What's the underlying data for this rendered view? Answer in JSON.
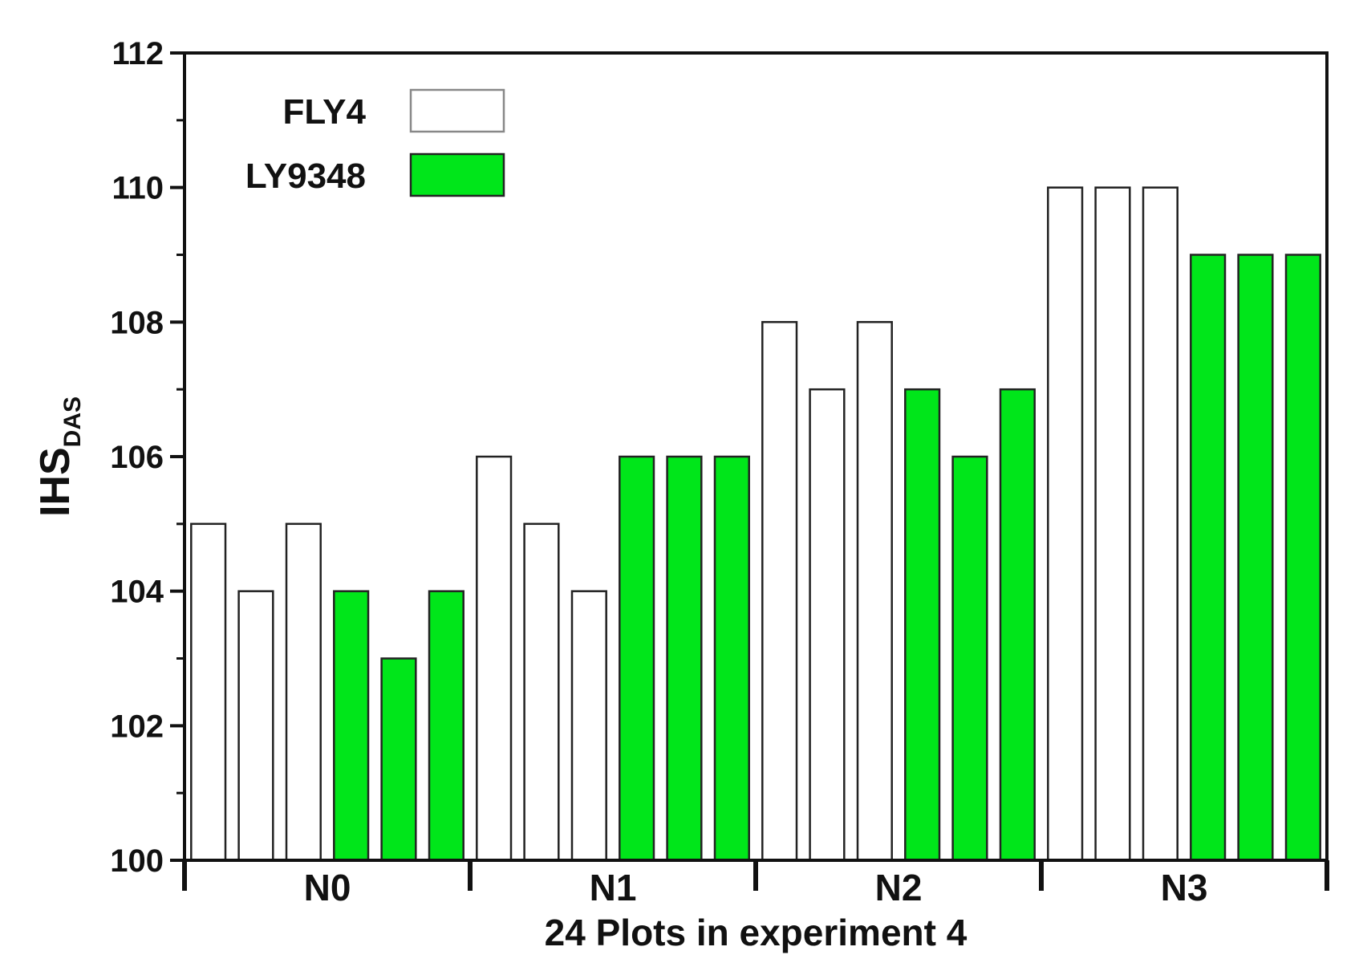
{
  "chart_data": {
    "type": "bar",
    "title": "",
    "xlabel": "24 Plots in experiment 4",
    "ylabel": {
      "main": "IHS",
      "sub": "DAS"
    },
    "ylim": [
      100,
      112
    ],
    "yticks": [
      100,
      102,
      104,
      106,
      108,
      110,
      112
    ],
    "groups": [
      "N0",
      "N1",
      "N2",
      "N3"
    ],
    "bars": [
      {
        "group": "N0",
        "series": "FLY4",
        "value": 105
      },
      {
        "group": "N0",
        "series": "FLY4",
        "value": 104
      },
      {
        "group": "N0",
        "series": "FLY4",
        "value": 105
      },
      {
        "group": "N0",
        "series": "LY9348",
        "value": 104
      },
      {
        "group": "N0",
        "series": "LY9348",
        "value": 103
      },
      {
        "group": "N0",
        "series": "LY9348",
        "value": 104
      },
      {
        "group": "N1",
        "series": "FLY4",
        "value": 106
      },
      {
        "group": "N1",
        "series": "FLY4",
        "value": 105
      },
      {
        "group": "N1",
        "series": "FLY4",
        "value": 104
      },
      {
        "group": "N1",
        "series": "LY9348",
        "value": 106
      },
      {
        "group": "N1",
        "series": "LY9348",
        "value": 106
      },
      {
        "group": "N1",
        "series": "LY9348",
        "value": 106
      },
      {
        "group": "N2",
        "series": "FLY4",
        "value": 108
      },
      {
        "group": "N2",
        "series": "FLY4",
        "value": 107
      },
      {
        "group": "N2",
        "series": "FLY4",
        "value": 108
      },
      {
        "group": "N2",
        "series": "LY9348",
        "value": 107
      },
      {
        "group": "N2",
        "series": "LY9348",
        "value": 106
      },
      {
        "group": "N2",
        "series": "LY9348",
        "value": 107
      },
      {
        "group": "N3",
        "series": "FLY4",
        "value": 110
      },
      {
        "group": "N3",
        "series": "FLY4",
        "value": 110
      },
      {
        "group": "N3",
        "series": "FLY4",
        "value": 110
      },
      {
        "group": "N3",
        "series": "LY9348",
        "value": 109
      },
      {
        "group": "N3",
        "series": "LY9348",
        "value": 109
      },
      {
        "group": "N3",
        "series": "LY9348",
        "value": 109
      }
    ],
    "series": [
      {
        "name": "FLY4",
        "color": "#ffffff"
      },
      {
        "name": "LY9348",
        "color": "#00e61a"
      }
    ],
    "legend_position": "top-left",
    "grid": false
  }
}
